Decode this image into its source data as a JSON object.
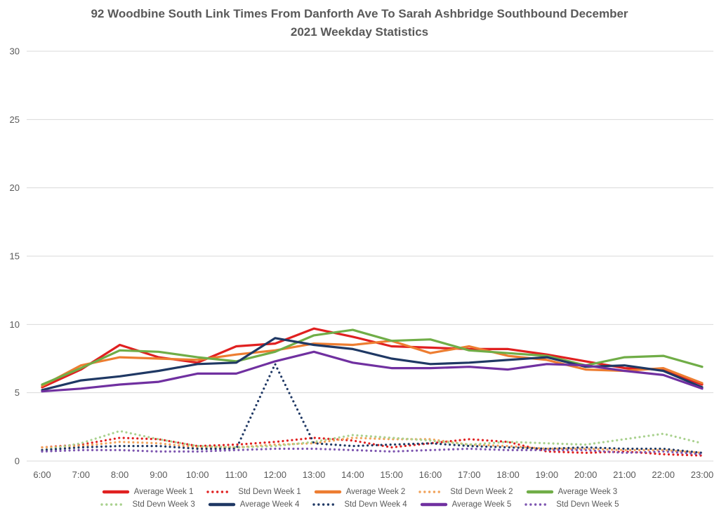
{
  "title": {
    "line1": "92 Woodbine South Link Times From Danforth Ave To Sarah Ashbridge Southbound December",
    "line2": "2021 Weekday Statistics"
  },
  "colors": {
    "background": "#ffffff",
    "text": "#595959",
    "grid": "#d9d9d9"
  },
  "chart_data": {
    "type": "line",
    "title": "92 Woodbine South Link Times From Danforth Ave To Sarah Ashbridge Southbound December 2021 Weekday Statistics",
    "xlabel": "",
    "ylabel": "",
    "x": [
      "6:00",
      "7:00",
      "8:00",
      "9:00",
      "10:00",
      "11:00",
      "12:00",
      "13:00",
      "14:00",
      "15:00",
      "16:00",
      "17:00",
      "18:00",
      "19:00",
      "20:00",
      "21:00",
      "22:00",
      "23:00"
    ],
    "ylim": [
      0,
      30
    ],
    "yticks": [
      0,
      5,
      10,
      15,
      20,
      25,
      30
    ],
    "grid": true,
    "legend_position": "bottom",
    "series": [
      {
        "name": "Average Week 1",
        "color": "#e02020",
        "style": "solid",
        "values": [
          5.4,
          6.7,
          8.5,
          7.6,
          7.2,
          8.4,
          8.6,
          9.7,
          9.1,
          8.4,
          8.3,
          8.2,
          8.2,
          7.8,
          7.3,
          6.8,
          6.7,
          5.6
        ]
      },
      {
        "name": "Std Devn Week 1",
        "color": "#e02020",
        "style": "dotted",
        "values": [
          1.0,
          1.2,
          1.7,
          1.6,
          1.1,
          1.2,
          1.4,
          1.7,
          1.5,
          1.0,
          1.3,
          1.6,
          1.4,
          0.7,
          0.6,
          0.7,
          0.5,
          0.4
        ]
      },
      {
        "name": "Average Week 2",
        "color": "#ed7d31",
        "style": "solid",
        "values": [
          5.5,
          7.0,
          7.6,
          7.5,
          7.4,
          7.8,
          8.1,
          8.6,
          8.5,
          8.8,
          7.9,
          8.4,
          7.7,
          7.4,
          6.7,
          6.6,
          6.8,
          5.7
        ]
      },
      {
        "name": "Std Devn Week 2",
        "color": "#f1a25a",
        "style": "dotted",
        "values": [
          1.0,
          1.1,
          1.4,
          1.3,
          1.0,
          1.0,
          1.2,
          1.3,
          1.7,
          1.6,
          1.6,
          1.2,
          1.1,
          0.9,
          0.9,
          0.8,
          0.8,
          0.6
        ]
      },
      {
        "name": "Average Week 3",
        "color": "#70ad47",
        "style": "solid",
        "values": [
          5.6,
          6.8,
          8.1,
          8.0,
          7.6,
          7.3,
          8.0,
          9.2,
          9.6,
          8.8,
          8.9,
          8.1,
          7.9,
          7.7,
          7.0,
          7.6,
          7.7,
          6.9
        ]
      },
      {
        "name": "Std Devn Week 3",
        "color": "#a9d18e",
        "style": "dotted",
        "values": [
          0.8,
          1.3,
          2.2,
          1.6,
          1.1,
          1.0,
          1.1,
          1.4,
          1.9,
          1.7,
          1.5,
          1.2,
          1.4,
          1.3,
          1.2,
          1.6,
          2.0,
          1.3
        ]
      },
      {
        "name": "Average Week 4",
        "color": "#1f3864",
        "style": "solid",
        "values": [
          5.2,
          5.9,
          6.2,
          6.6,
          7.1,
          7.2,
          9.0,
          8.5,
          8.2,
          7.5,
          7.1,
          7.2,
          7.4,
          7.6,
          6.9,
          7.0,
          6.6,
          5.4
        ]
      },
      {
        "name": "Std Devn Week 4",
        "color": "#1f3864",
        "style": "dotted",
        "values": [
          0.8,
          1.0,
          1.1,
          1.1,
          0.9,
          0.9,
          7.1,
          1.3,
          1.1,
          1.2,
          1.3,
          1.1,
          1.0,
          0.9,
          1.0,
          0.9,
          0.9,
          0.6
        ]
      },
      {
        "name": "Average Week 5",
        "color": "#7030a0",
        "style": "solid",
        "values": [
          5.1,
          5.3,
          5.6,
          5.8,
          6.4,
          6.4,
          7.3,
          8.0,
          7.2,
          6.8,
          6.8,
          6.9,
          6.7,
          7.1,
          7.0,
          6.6,
          6.3,
          5.3
        ]
      },
      {
        "name": "Std Devn Week 5",
        "color": "#7d55b0",
        "style": "dotted",
        "values": [
          0.7,
          0.8,
          0.8,
          0.7,
          0.7,
          0.8,
          0.9,
          0.9,
          0.8,
          0.7,
          0.8,
          0.9,
          0.8,
          0.8,
          0.8,
          0.6,
          0.7,
          0.5
        ]
      }
    ],
    "legend_rows": [
      [
        0,
        1,
        2,
        3,
        4
      ],
      [
        5,
        6,
        7,
        8,
        9
      ]
    ]
  }
}
